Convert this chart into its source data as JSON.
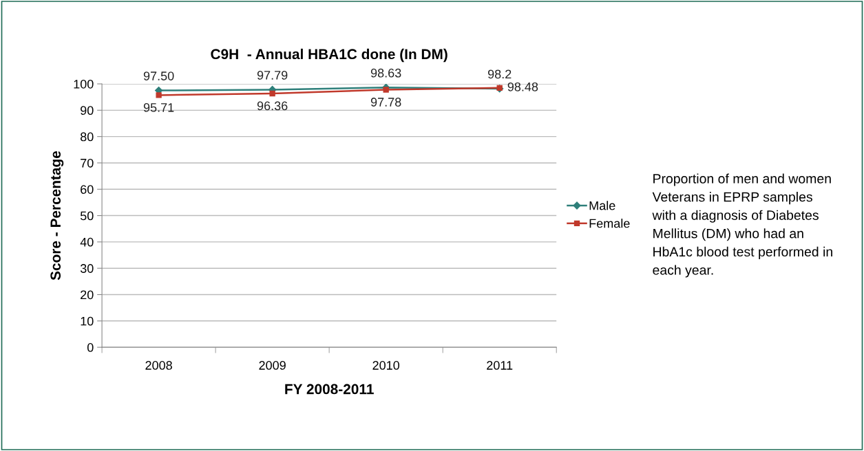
{
  "chart_data": {
    "type": "line",
    "title": "C9H  - Annual HBA1C done (In DM)",
    "xlabel": "FY 2008-2011",
    "ylabel": "Score - Percentage",
    "categories": [
      "2008",
      "2009",
      "2010",
      "2011"
    ],
    "series": [
      {
        "name": "Male",
        "color": "#2e7f7a",
        "marker": "diamond",
        "values": [
          97.5,
          97.79,
          98.63,
          98.2
        ],
        "value_labels": [
          "97.50",
          "97.79",
          "98.63",
          "98.2"
        ]
      },
      {
        "name": "Female",
        "color": "#c0392b",
        "marker": "square",
        "values": [
          95.71,
          96.36,
          97.78,
          98.48
        ],
        "value_labels": [
          "95.71",
          "96.36",
          "97.78",
          "98.48"
        ]
      }
    ],
    "ylim": [
      0,
      100
    ],
    "yticks": [
      0,
      10,
      20,
      30,
      40,
      50,
      60,
      70,
      80,
      90,
      100
    ],
    "grid": "y",
    "legend": "right",
    "line_style": "solid",
    "annotations": [
      "Proportion of men and women Veterans in EPRP samples with a diagnosis of Diabetes Mellitus (DM) who had an HbA1c blood test performed in each year."
    ]
  }
}
